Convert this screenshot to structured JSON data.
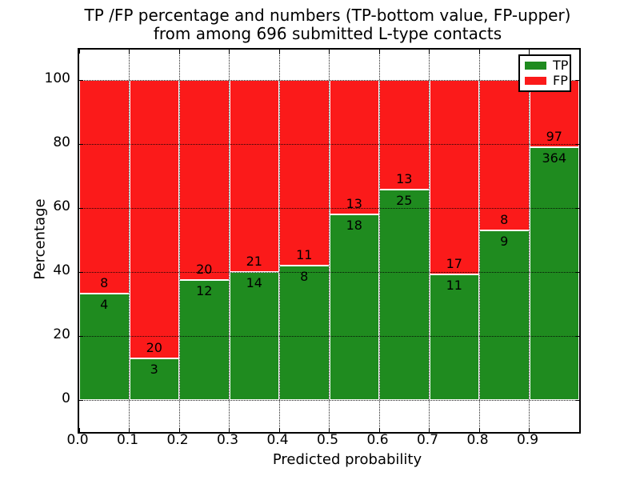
{
  "figure": {
    "title_line1": "TP /FP percentage and numbers (TP-bottom value, FP-upper)",
    "title_line2": "from among 696 submitted L-type contacts"
  },
  "chart_data": {
    "type": "bar",
    "stacked": true,
    "normalized": "percent",
    "title": "TP /FP percentage and numbers (TP-bottom value, FP-upper) from among 696 submitted L-type contacts",
    "xlabel": "Predicted probability",
    "ylabel": "Percentage",
    "total_submitted": 696,
    "bin_width": 0.1,
    "bin_starts": [
      0.0,
      0.1,
      0.2,
      0.3,
      0.4,
      0.5,
      0.6,
      0.7,
      0.8,
      0.9
    ],
    "series": [
      {
        "name": "TP",
        "color": "#1f8b1f",
        "counts": [
          4,
          3,
          12,
          14,
          8,
          18,
          25,
          11,
          9,
          364
        ]
      },
      {
        "name": "FP",
        "color": "#fb1a1a",
        "counts": [
          8,
          20,
          20,
          21,
          11,
          13,
          13,
          17,
          8,
          97
        ]
      }
    ],
    "tp_percent_by_bin": [
      33.3,
      13.0,
      37.5,
      40.0,
      42.1,
      58.1,
      65.8,
      39.3,
      52.9,
      79.0
    ],
    "yticks": [
      0,
      20,
      40,
      60,
      80,
      100
    ],
    "xtick_labels": [
      "0.0",
      "0.1",
      "0.2",
      "0.3",
      "0.4",
      "0.5",
      "0.6",
      "0.7",
      "0.8",
      "0.9"
    ],
    "ylim": [
      -10,
      110
    ],
    "xlim": [
      0.0,
      1.0
    ],
    "grid": "dotted",
    "legend": {
      "position": "upper right",
      "items": [
        {
          "label": "TP",
          "color": "#1f8b1f"
        },
        {
          "label": "FP",
          "color": "#fb1a1a"
        }
      ]
    }
  }
}
